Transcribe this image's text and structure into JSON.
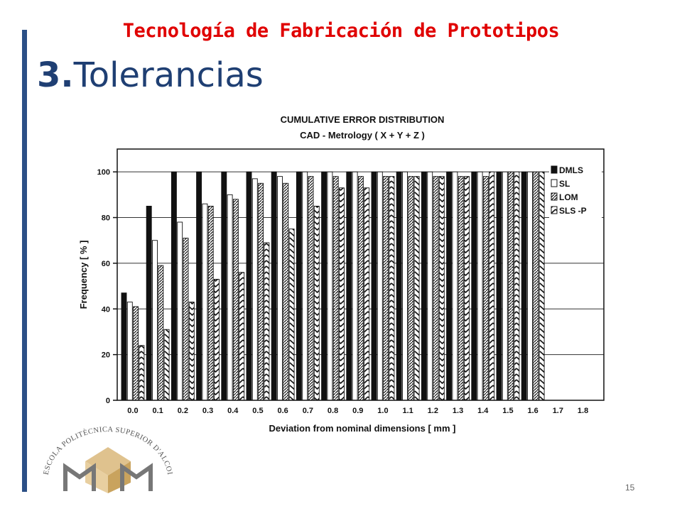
{
  "slide": {
    "header": "Tecnología de Fabricación de Prototipos",
    "section_number": "3.",
    "section_title": "Tolerancias",
    "page_number": "15",
    "logo_text": "ESCOLA POLITÈCNICA SUPERIOR D'ALCOI",
    "colors": {
      "header": "#e00000",
      "title": "#1f3f73",
      "bar": "#2b4f86"
    }
  },
  "chart_data": {
    "type": "bar",
    "title": "CUMULATIVE ERROR DISTRIBUTION",
    "subtitle": "CAD - Metrology ( X + Y + Z )",
    "xlabel": "Deviation from nominal dimensions [ mm ]",
    "ylabel": "Frequency [ % ]",
    "ylim": [
      0,
      110
    ],
    "yticks": [
      0,
      20,
      40,
      60,
      80,
      100
    ],
    "grid": true,
    "legend_position": "top-right",
    "categories": [
      "0.0",
      "0.1",
      "0.2",
      "0.3",
      "0.4",
      "0.5",
      "0.6",
      "0.7",
      "0.8",
      "0.9",
      "1.0",
      "1.1",
      "1.2",
      "1.3",
      "1.4",
      "1.5",
      "1.6",
      "1.7",
      "1.8"
    ],
    "series": [
      {
        "name": "DMLS",
        "pattern": "solid",
        "values": [
          47,
          85,
          100,
          100,
          100,
          100,
          100,
          100,
          100,
          100,
          100,
          100,
          100,
          100,
          100,
          100,
          100,
          null,
          null
        ]
      },
      {
        "name": "SL",
        "pattern": "open",
        "values": [
          43,
          70,
          78,
          86,
          90,
          97,
          98,
          100,
          100,
          100,
          100,
          100,
          100,
          100,
          100,
          100,
          100,
          null,
          null
        ]
      },
      {
        "name": "LOM",
        "pattern": "hatch",
        "values": [
          41,
          59,
          71,
          85,
          88,
          95,
          95,
          98,
          98,
          98,
          98,
          98,
          98,
          98,
          98,
          100,
          100,
          null,
          null
        ]
      },
      {
        "name": "SLS -P",
        "pattern": "chevron",
        "values": [
          24,
          31,
          43,
          53,
          56,
          69,
          75,
          85,
          93,
          93,
          98,
          98,
          98,
          98,
          100,
          100,
          100,
          null,
          null
        ]
      }
    ]
  }
}
